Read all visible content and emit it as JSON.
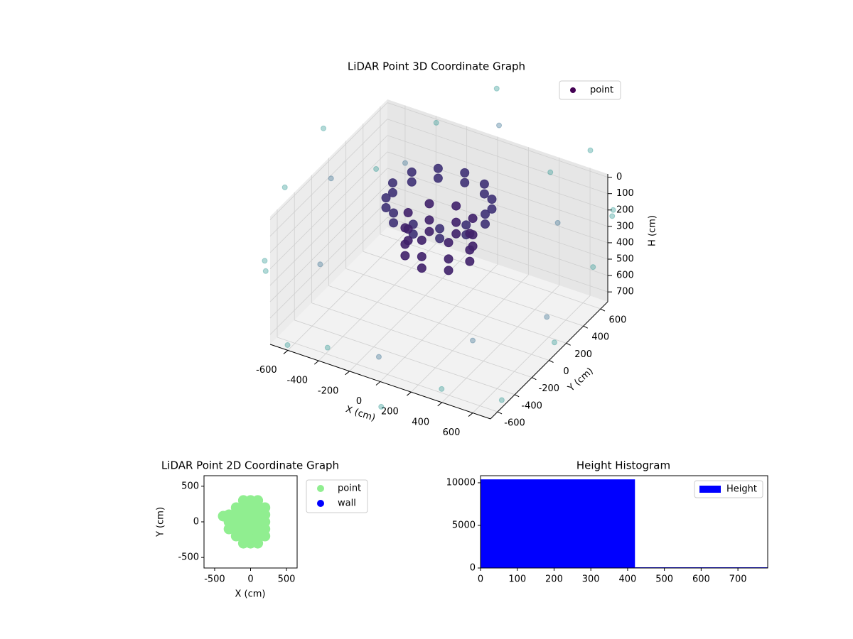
{
  "chart_data": [
    {
      "type": "scatter3d",
      "title": "LiDAR Point 3D Coordinate Graph",
      "xlabel": "X (cm)",
      "ylabel": "Y (cm)",
      "zlabel": "H (cm)",
      "xlim": [
        -715,
        715
      ],
      "ylim": [
        -683,
        683
      ],
      "zlim": [
        -20,
        760
      ],
      "z_inverted": true,
      "cmap": "viridis",
      "legend": "upper right",
      "grid": true,
      "xticks": [
        -600,
        -400,
        -200,
        0,
        200,
        400,
        600
      ],
      "yticks": [
        -600,
        -400,
        -200,
        0,
        200,
        400,
        600
      ],
      "zticks": [
        0,
        100,
        200,
        300,
        400,
        500,
        600,
        700
      ],
      "series": [
        {
          "name": "point",
          "color": "#440154",
          "x": [
            300,
            260,
            150,
            0,
            -150,
            -260,
            -300,
            -260,
            -150,
            0,
            150,
            260,
            300,
            260,
            150,
            0,
            -150,
            -260,
            -300,
            -260,
            -150,
            0,
            150,
            260,
            200,
            141,
            0,
            -141,
            -200,
            -141,
            0,
            141,
            200,
            141,
            0,
            -141,
            -200,
            -141,
            0,
            141,
            200,
            141,
            0,
            -141,
            -200,
            -141,
            0,
            141,
            1000,
            940,
            766,
            500,
            174,
            -174,
            -500,
            -766,
            -940,
            -1000,
            -940,
            -766,
            -500,
            -174,
            174,
            500,
            766,
            940,
            700,
            0,
            -700,
            0,
            495,
            -495,
            495,
            -495
          ],
          "y": [
            0,
            150,
            260,
            300,
            260,
            150,
            0,
            -150,
            -260,
            -300,
            -260,
            -150,
            0,
            150,
            260,
            300,
            260,
            150,
            0,
            -150,
            -260,
            -300,
            -260,
            -150,
            0,
            141,
            200,
            141,
            0,
            -141,
            -200,
            -141,
            0,
            141,
            200,
            141,
            0,
            -141,
            -200,
            -141,
            0,
            141,
            200,
            141,
            0,
            -141,
            -200,
            -141,
            0,
            342,
            643,
            866,
            985,
            985,
            866,
            643,
            342,
            0,
            -342,
            -643,
            -866,
            -985,
            -985,
            -866,
            -643,
            -342,
            0,
            700,
            0,
            -700,
            495,
            -495,
            -495,
            495
          ],
          "z": [
            0,
            0,
            0,
            0,
            0,
            0,
            0,
            0,
            0,
            0,
            0,
            0,
            60,
            60,
            60,
            60,
            60,
            60,
            60,
            60,
            60,
            60,
            60,
            60,
            150,
            150,
            150,
            150,
            150,
            150,
            150,
            150,
            250,
            250,
            250,
            250,
            250,
            250,
            250,
            250,
            320,
            320,
            320,
            320,
            320,
            320,
            320,
            320,
            100,
            -50,
            200,
            0,
            300,
            -100,
            150,
            400,
            50,
            250,
            500,
            350,
            600,
            450,
            700,
            550,
            650,
            400,
            500,
            -80,
            100,
            600,
            250,
            300,
            450,
            200
          ]
        }
      ]
    },
    {
      "type": "scatter",
      "title": "LiDAR Point 2D Coordinate Graph",
      "xlabel": "X (cm)",
      "ylabel": "Y (cm)",
      "xlim": [
        -648,
        648
      ],
      "ylim": [
        -648,
        648
      ],
      "xticks": [
        -500,
        0,
        500
      ],
      "yticks": [
        -500,
        0,
        500
      ],
      "legend": "outside right",
      "series": [
        {
          "name": "point",
          "color": "#90ee90",
          "x": [
            -100,
            0,
            100,
            -200,
            -100,
            0,
            100,
            200,
            -300,
            -200,
            -100,
            0,
            100,
            200,
            -300,
            -200,
            -100,
            0,
            100,
            200,
            -300,
            -200,
            -100,
            0,
            100,
            200,
            -200,
            -100,
            0,
            100,
            200,
            -100,
            0,
            100,
            -380
          ],
          "y": [
            -300,
            -300,
            -300,
            -200,
            -200,
            -200,
            -200,
            -200,
            -100,
            -100,
            -100,
            -100,
            -100,
            -100,
            0,
            0,
            0,
            0,
            0,
            0,
            100,
            100,
            100,
            100,
            100,
            100,
            200,
            200,
            200,
            200,
            200,
            300,
            300,
            300,
            80
          ]
        },
        {
          "name": "wall",
          "color": "#0000ff",
          "x": [],
          "y": []
        }
      ]
    },
    {
      "type": "histogram",
      "title": "Height Histogram",
      "bins": [
        0,
        420,
        781
      ],
      "values": [
        10400,
        40
      ],
      "series_name": "Height",
      "color": "#0000ff",
      "legend": "upper right",
      "xlim": [
        0,
        781
      ],
      "ylim": [
        0,
        10830
      ],
      "xticks": [
        0,
        100,
        200,
        300,
        400,
        500,
        600,
        700
      ],
      "yticks": [
        0,
        5000,
        10000
      ]
    }
  ]
}
